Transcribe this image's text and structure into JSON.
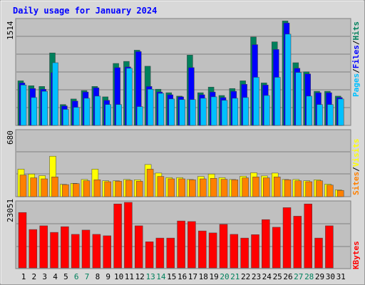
{
  "chart_data": [
    {
      "type": "bar",
      "title": "Daily usage for January 2024",
      "y_scale_label": "1514",
      "ylim": [
        0,
        1514
      ],
      "legend": [
        {
          "label": "Hits",
          "color": "#00805c"
        },
        {
          "label": "Files",
          "color": "#0000ff"
        },
        {
          "label": "Pages",
          "color": "#00c0ff"
        }
      ],
      "categories": [
        "1",
        "2",
        "3",
        "4",
        "5",
        "6",
        "7",
        "8",
        "9",
        "10",
        "11",
        "12",
        "13",
        "14",
        "15",
        "16",
        "17",
        "18",
        "19",
        "20",
        "21",
        "22",
        "23",
        "24",
        "25",
        "26",
        "27",
        "28",
        "29",
        "30",
        "31"
      ],
      "series": [
        {
          "name": "Hits",
          "values": [
            640,
            570,
            560,
            1040,
            300,
            380,
            500,
            560,
            410,
            890,
            920,
            1080,
            850,
            520,
            470,
            420,
            1010,
            470,
            550,
            430,
            530,
            640,
            1270,
            610,
            1200,
            1500,
            900,
            770,
            490,
            490,
            420
          ]
        },
        {
          "name": "Files",
          "values": [
            610,
            530,
            520,
            760,
            280,
            350,
            480,
            540,
            360,
            830,
            840,
            1060,
            560,
            480,
            440,
            410,
            830,
            440,
            480,
            400,
            490,
            590,
            1160,
            580,
            1090,
            1470,
            820,
            740,
            470,
            470,
            400
          ]
        },
        {
          "name": "Pages",
          "values": [
            580,
            400,
            490,
            900,
            230,
            260,
            390,
            420,
            300,
            300,
            820,
            270,
            520,
            460,
            380,
            370,
            370,
            390,
            410,
            360,
            390,
            400,
            690,
            430,
            690,
            1310,
            760,
            420,
            300,
            300,
            380
          ]
        }
      ]
    },
    {
      "type": "bar",
      "y_scale_label": "680",
      "ylim": [
        0,
        680
      ],
      "legend": [
        {
          "label": "Visits",
          "color": "#ffff00"
        },
        {
          "label": "Sites",
          "color": "#ff8000"
        }
      ],
      "categories": [
        "1",
        "2",
        "3",
        "4",
        "5",
        "6",
        "7",
        "8",
        "9",
        "10",
        "11",
        "12",
        "13",
        "14",
        "15",
        "16",
        "17",
        "18",
        "19",
        "20",
        "21",
        "22",
        "23",
        "24",
        "25",
        "26",
        "27",
        "28",
        "29",
        "30",
        "31"
      ],
      "series": [
        {
          "name": "Visits",
          "values": [
            285,
            235,
            218,
            420,
            128,
            138,
            178,
            285,
            165,
            165,
            178,
            175,
            333,
            245,
            198,
            198,
            178,
            210,
            235,
            198,
            178,
            213,
            248,
            215,
            245,
            178,
            178,
            165,
            175,
            130,
            70
          ]
        },
        {
          "name": "Sites",
          "values": [
            225,
            195,
            185,
            205,
            125,
            135,
            165,
            175,
            155,
            160,
            170,
            160,
            285,
            210,
            185,
            185,
            175,
            185,
            190,
            180,
            175,
            195,
            205,
            195,
            205,
            175,
            165,
            155,
            165,
            120,
            65
          ]
        }
      ]
    },
    {
      "type": "bar",
      "y_scale_label": "23051",
      "ylim": [
        0,
        23051
      ],
      "legend": [
        {
          "label": "KBytes",
          "color": "#ff0000"
        }
      ],
      "categories": [
        "1",
        "2",
        "3",
        "4",
        "5",
        "6",
        "7",
        "8",
        "9",
        "10",
        "11",
        "12",
        "13",
        "14",
        "15",
        "16",
        "17",
        "18",
        "19",
        "20",
        "21",
        "22",
        "23",
        "24",
        "25",
        "26",
        "27",
        "28",
        "29",
        "30",
        "31"
      ],
      "series": [
        {
          "name": "KBytes",
          "values": [
            19500,
            13500,
            14800,
            12500,
            14500,
            11800,
            13300,
            11800,
            11300,
            22500,
            23051,
            14800,
            9200,
            10500,
            10500,
            16500,
            16300,
            13000,
            12300,
            15300,
            11800,
            10500,
            11700,
            17000,
            14300,
            21200,
            18200,
            22500,
            10500,
            14800,
            null
          ]
        }
      ]
    }
  ],
  "colors": {
    "background": "#d8d8d8",
    "panel": "#c0c0c0",
    "title": "#0000ff",
    "grid": "#808080"
  }
}
